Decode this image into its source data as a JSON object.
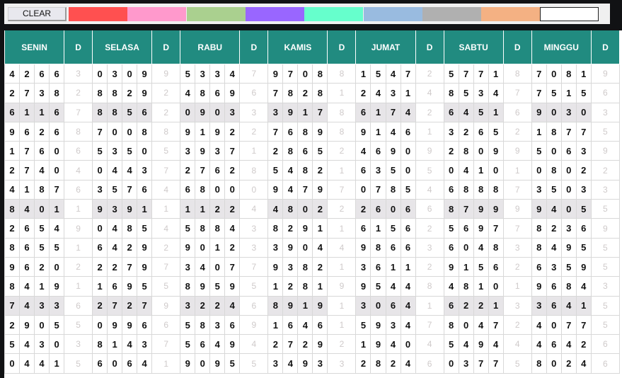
{
  "toolbar": {
    "clear_label": "CLEAR",
    "swatches": [
      "#ff5050",
      "#ff99cc",
      "#aad08f",
      "#9966ff",
      "#66ffcc",
      "#99bbe0",
      "#b0b0b0",
      "#f4b183",
      "#ffffff"
    ]
  },
  "table": {
    "headers": [
      "SENIN",
      "D",
      "SELASA",
      "D",
      "RABU",
      "D",
      "KAMIS",
      "D",
      "JUMAT",
      "D",
      "SABTU",
      "D",
      "MINGGU",
      "D"
    ],
    "header_color": "#218b80",
    "highlight_color": "#e7e5e8",
    "highlighted_rows": [
      2,
      7,
      12
    ],
    "rows": [
      [
        [
          "4266",
          "3"
        ],
        [
          "0309",
          "9"
        ],
        [
          "5334",
          "7"
        ],
        [
          "9708",
          "8"
        ],
        [
          "1547",
          "2"
        ],
        [
          "5771",
          "8"
        ],
        [
          "7081",
          "9"
        ]
      ],
      [
        [
          "2738",
          "2"
        ],
        [
          "8829",
          "2"
        ],
        [
          "4869",
          "6"
        ],
        [
          "7828",
          "1"
        ],
        [
          "2431",
          "4"
        ],
        [
          "8534",
          "7"
        ],
        [
          "7515",
          "6"
        ]
      ],
      [
        [
          "6116",
          "7"
        ],
        [
          "8856",
          "2"
        ],
        [
          "0903",
          "3"
        ],
        [
          "3917",
          "8"
        ],
        [
          "6174",
          "2"
        ],
        [
          "6451",
          "6"
        ],
        [
          "9030",
          "3"
        ]
      ],
      [
        [
          "9626",
          "8"
        ],
        [
          "7008",
          "8"
        ],
        [
          "9192",
          "2"
        ],
        [
          "7689",
          "8"
        ],
        [
          "9146",
          "1"
        ],
        [
          "3265",
          "2"
        ],
        [
          "1877",
          "5"
        ]
      ],
      [
        [
          "1760",
          "6"
        ],
        [
          "5350",
          "5"
        ],
        [
          "3937",
          "1"
        ],
        [
          "2865",
          "2"
        ],
        [
          "4690",
          "9"
        ],
        [
          "2809",
          "9"
        ],
        [
          "5063",
          "9"
        ]
      ],
      [
        [
          "2740",
          "4"
        ],
        [
          "0443",
          "7"
        ],
        [
          "2762",
          "8"
        ],
        [
          "5482",
          "1"
        ],
        [
          "6350",
          "5"
        ],
        [
          "0410",
          "1"
        ],
        [
          "0802",
          "2"
        ]
      ],
      [
        [
          "4187",
          "6"
        ],
        [
          "3576",
          "4"
        ],
        [
          "6800",
          "0"
        ],
        [
          "9479",
          "7"
        ],
        [
          "0785",
          "4"
        ],
        [
          "6888",
          "7"
        ],
        [
          "3503",
          "3"
        ]
      ],
      [
        [
          "8401",
          "1"
        ],
        [
          "9391",
          "1"
        ],
        [
          "1122",
          "4"
        ],
        [
          "4802",
          "2"
        ],
        [
          "2606",
          "6"
        ],
        [
          "8799",
          "9"
        ],
        [
          "9405",
          "5"
        ]
      ],
      [
        [
          "2654",
          "9"
        ],
        [
          "0485",
          "4"
        ],
        [
          "5884",
          "3"
        ],
        [
          "8291",
          "1"
        ],
        [
          "6156",
          "2"
        ],
        [
          "5697",
          "7"
        ],
        [
          "8236",
          "9"
        ]
      ],
      [
        [
          "8655",
          "1"
        ],
        [
          "6429",
          "2"
        ],
        [
          "9012",
          "3"
        ],
        [
          "3904",
          "4"
        ],
        [
          "9866",
          "3"
        ],
        [
          "6048",
          "3"
        ],
        [
          "8495",
          "5"
        ]
      ],
      [
        [
          "9620",
          "2"
        ],
        [
          "2279",
          "7"
        ],
        [
          "3407",
          "7"
        ],
        [
          "9382",
          "1"
        ],
        [
          "3611",
          "2"
        ],
        [
          "9156",
          "2"
        ],
        [
          "6359",
          "5"
        ]
      ],
      [
        [
          "8419",
          "1"
        ],
        [
          "1695",
          "5"
        ],
        [
          "8959",
          "5"
        ],
        [
          "1281",
          "9"
        ],
        [
          "9544",
          "8"
        ],
        [
          "4810",
          "1"
        ],
        [
          "9684",
          "3"
        ]
      ],
      [
        [
          "7433",
          "6"
        ],
        [
          "2727",
          "9"
        ],
        [
          "3224",
          "6"
        ],
        [
          "8919",
          "1"
        ],
        [
          "3064",
          "1"
        ],
        [
          "6221",
          "3"
        ],
        [
          "3641",
          "5"
        ]
      ],
      [
        [
          "2905",
          "5"
        ],
        [
          "0996",
          "6"
        ],
        [
          "5836",
          "9"
        ],
        [
          "1646",
          "1"
        ],
        [
          "5934",
          "7"
        ],
        [
          "8047",
          "2"
        ],
        [
          "4077",
          "5"
        ]
      ],
      [
        [
          "5430",
          "3"
        ],
        [
          "8143",
          "7"
        ],
        [
          "5649",
          "4"
        ],
        [
          "2729",
          "2"
        ],
        [
          "1940",
          "4"
        ],
        [
          "5494",
          "4"
        ],
        [
          "4642",
          "6"
        ]
      ],
      [
        [
          "0441",
          "5"
        ],
        [
          "6064",
          "1"
        ],
        [
          "9095",
          "5"
        ],
        [
          "3493",
          "3"
        ],
        [
          "2824",
          "6"
        ],
        [
          "0377",
          "5"
        ],
        [
          "8024",
          "6"
        ]
      ]
    ]
  }
}
